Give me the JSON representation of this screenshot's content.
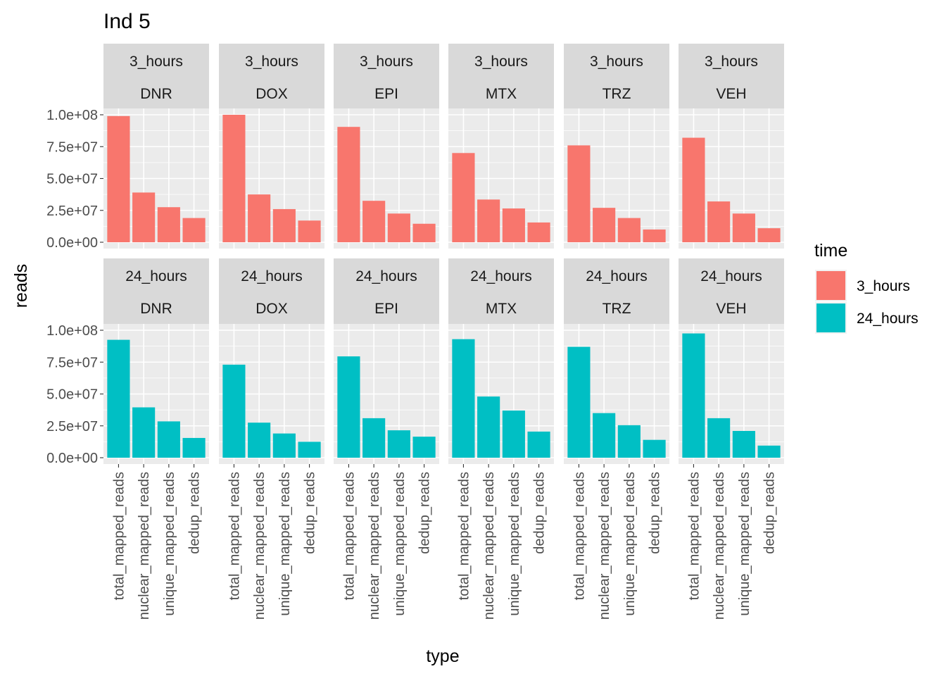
{
  "chart_data": {
    "type": "bar",
    "title": "Ind 5",
    "xlabel": "type",
    "ylabel": "reads",
    "categories": [
      "total_mapped_reads",
      "nuclear_mapped_reads",
      "unique_mapped_reads",
      "dedup_reads"
    ],
    "drugs": [
      "DNR",
      "DOX",
      "EPI",
      "MTX",
      "TRZ",
      "VEH"
    ],
    "ylim": [
      0,
      100000000
    ],
    "yticks": [
      0,
      25000000,
      50000000,
      75000000,
      100000000
    ],
    "ytick_labels": [
      "0.0e+00",
      "2.5e+07",
      "5.0e+07",
      "7.5e+07",
      "1.0e+08"
    ],
    "grid": true,
    "legend": {
      "title": "time",
      "placement": "right",
      "entries": [
        {
          "label": "3_hours",
          "color": "#F8766D"
        },
        {
          "label": "24_hours",
          "color": "#00BFC4"
        }
      ]
    },
    "series": [
      {
        "name": "3_hours",
        "color": "#F8766D",
        "panels": {
          "DNR": [
            99000000,
            39000000,
            27500000,
            19000000
          ],
          "DOX": [
            100000000,
            37500000,
            26000000,
            17000000
          ],
          "EPI": [
            90500000,
            32500000,
            22500000,
            14500000
          ],
          "MTX": [
            70000000,
            33500000,
            26500000,
            15500000
          ],
          "TRZ": [
            76000000,
            27000000,
            19000000,
            10000000
          ],
          "VEH": [
            82000000,
            32000000,
            22500000,
            11000000
          ]
        }
      },
      {
        "name": "24_hours",
        "color": "#00BFC4",
        "panels": {
          "DNR": [
            92500000,
            39500000,
            28500000,
            15500000
          ],
          "DOX": [
            73000000,
            27500000,
            19000000,
            12500000
          ],
          "EPI": [
            79500000,
            31000000,
            21500000,
            16500000
          ],
          "MTX": [
            93000000,
            48000000,
            37000000,
            20500000
          ],
          "TRZ": [
            87000000,
            35000000,
            25500000,
            14000000
          ],
          "VEH": [
            97500000,
            31000000,
            21000000,
            9500000
          ]
        }
      }
    ]
  }
}
